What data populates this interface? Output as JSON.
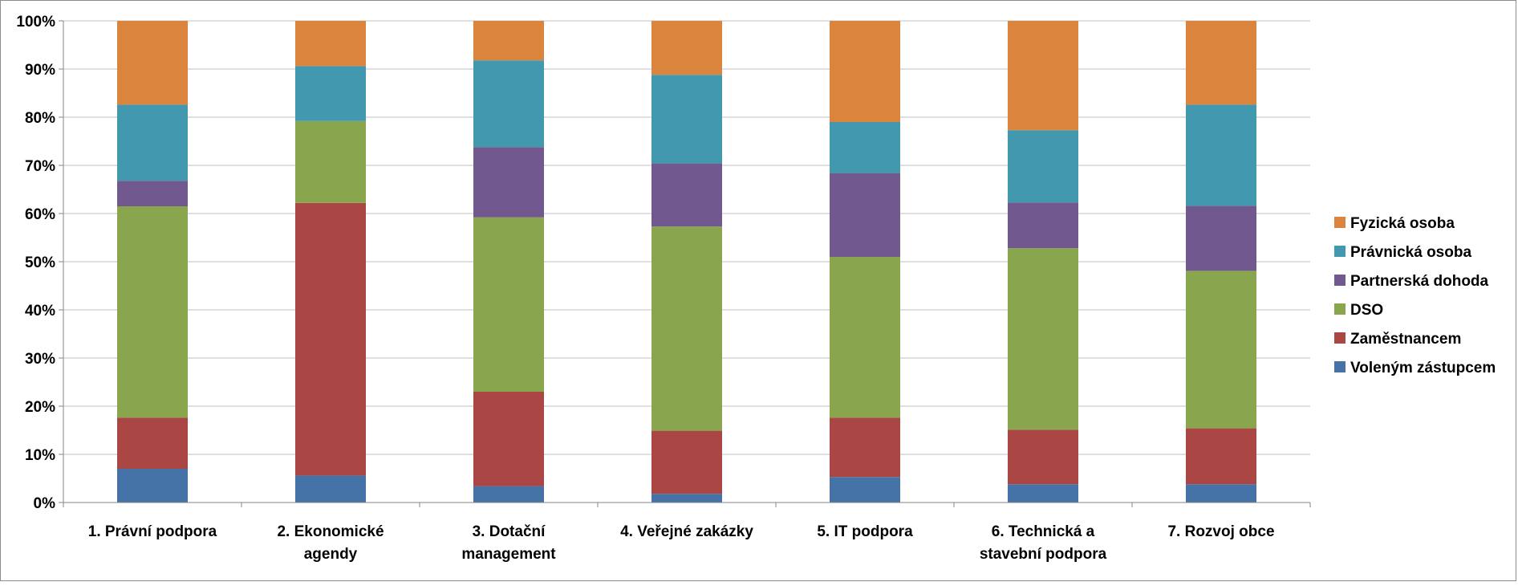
{
  "chart_data": {
    "type": "bar",
    "stacked": true,
    "percent_stacked": true,
    "categories": [
      [
        "1.  Právní podpora"
      ],
      [
        "2.  Ekonomické",
        "agendy"
      ],
      [
        "3.  Dotační",
        "management"
      ],
      [
        "4.  Veřejné zakázky"
      ],
      [
        "5.  IT podpora"
      ],
      [
        "6.  Technická a",
        "stavební podpora"
      ],
      [
        "7.  Rozvoj obce"
      ]
    ],
    "series": [
      {
        "name": "Voleným zástupcem",
        "color": "#4572a7",
        "values": [
          7.0,
          5.6,
          3.4,
          1.8,
          5.3,
          3.8,
          3.8
        ]
      },
      {
        "name": "Zaměstnancem",
        "color": "#aa4643",
        "values": [
          10.6,
          56.6,
          19.6,
          13.1,
          12.3,
          11.3,
          11.6
        ]
      },
      {
        "name": "DSO",
        "color": "#89a54e",
        "values": [
          43.9,
          17.0,
          36.2,
          42.4,
          33.4,
          37.7,
          32.7
        ]
      },
      {
        "name": "Partnerská dohoda",
        "color": "#71588f",
        "values": [
          5.3,
          0.0,
          14.6,
          13.1,
          17.4,
          9.5,
          13.5
        ]
      },
      {
        "name": "Právnická osoba",
        "color": "#4198af",
        "values": [
          15.8,
          11.4,
          18.0,
          18.4,
          10.6,
          15.0,
          21.0
        ]
      },
      {
        "name": "Fyzická osoba",
        "color": "#db843d",
        "values": [
          17.4,
          9.4,
          8.2,
          11.2,
          21.0,
          22.7,
          17.4
        ]
      }
    ],
    "y_ticks": [
      "0%",
      "10%",
      "20%",
      "30%",
      "40%",
      "50%",
      "60%",
      "70%",
      "80%",
      "90%",
      "100%"
    ],
    "ylim": [
      0,
      100
    ],
    "grid": true,
    "legend_position": "right",
    "legend_order": [
      "Fyzická osoba",
      "Právnická osoba",
      "Partnerská dohoda",
      "DSO",
      "Zaměstnancem",
      "Voleným zástupcem"
    ]
  }
}
